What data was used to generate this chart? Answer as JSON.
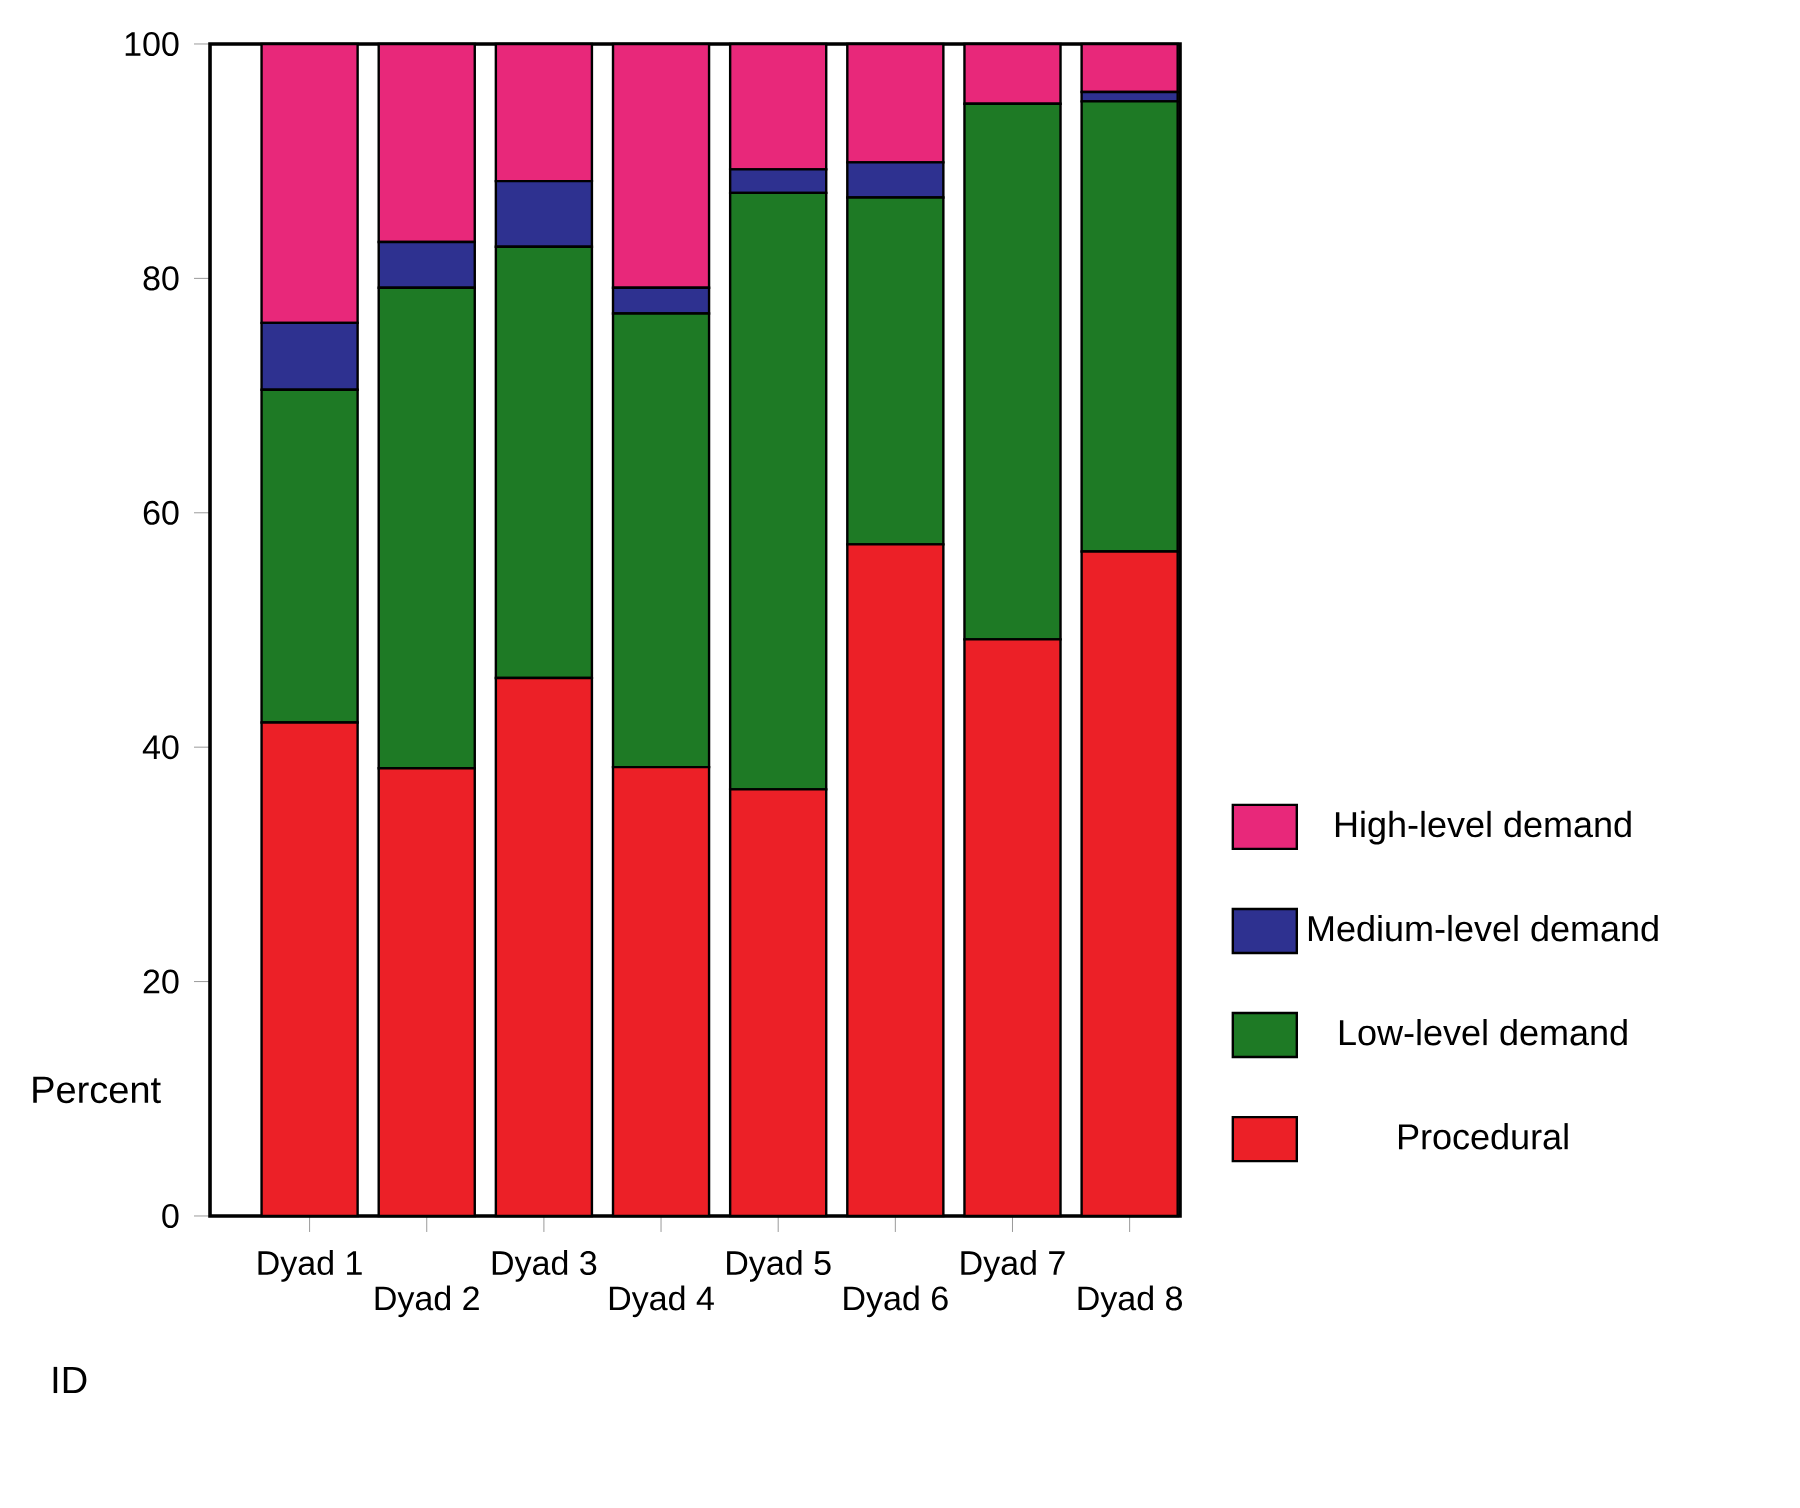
{
  "chart_data": {
    "type": "bar",
    "stacked": true,
    "xlabel": "ID",
    "ylabel": "Percent",
    "categories": [
      "Dyad 1",
      "Dyad 2",
      "Dyad 3",
      "Dyad 4",
      "Dyad 5",
      "Dyad 6",
      "Dyad 7",
      "Dyad 8"
    ],
    "series": [
      {
        "name": "Procedural",
        "color": "#ec2027",
        "values": [
          42.1,
          38.2,
          45.9,
          38.3,
          36.4,
          57.3,
          49.2,
          56.7
        ]
      },
      {
        "name": "Low-level demand",
        "color": "#1e7a25",
        "values": [
          28.4,
          41.0,
          36.8,
          38.7,
          50.9,
          29.6,
          45.7,
          38.4
        ]
      },
      {
        "name": "Medium-level demand",
        "color": "#2e3190",
        "values": [
          5.7,
          3.9,
          5.6,
          2.2,
          2.0,
          3.0,
          0,
          0.8
        ]
      },
      {
        "name": "High-level demand",
        "color": "#e8287a",
        "values": [
          23.8,
          16.9,
          11.7,
          20.8,
          10.7,
          10.1,
          5.1,
          4.1
        ]
      }
    ],
    "ylim": [
      0,
      100
    ],
    "yticks": [
      0,
      20,
      40,
      60,
      80,
      100
    ],
    "legend": "right"
  }
}
